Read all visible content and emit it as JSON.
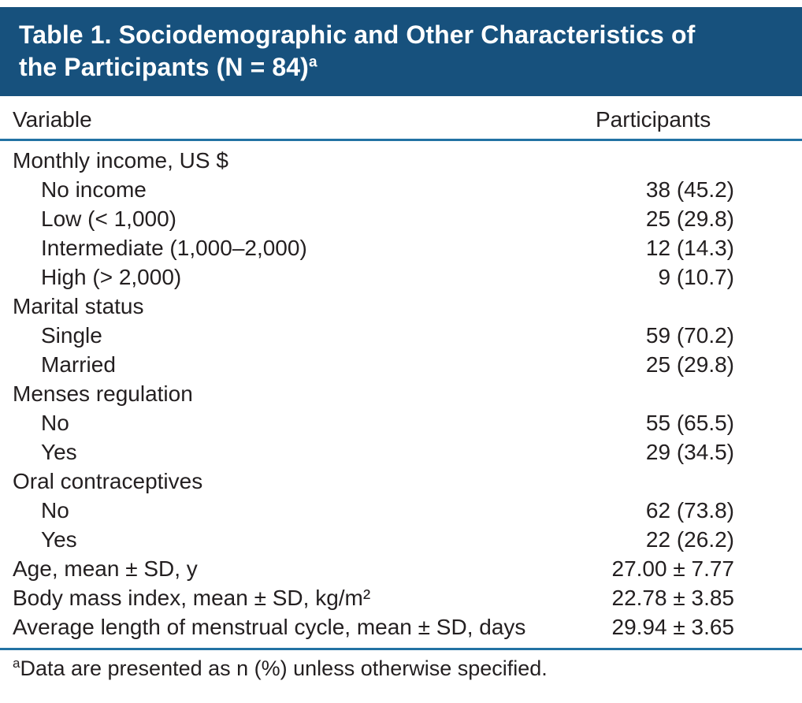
{
  "colors": {
    "band_bg": "#17517d",
    "rule": "#2272a3",
    "text": "#231f20"
  },
  "header": {
    "title": "Table 1. Sociodemographic and Other Characteristics of the Participants (N = 84)",
    "title_sup": "a"
  },
  "table": {
    "columns": [
      "Variable",
      "Participants"
    ],
    "rows": [
      {
        "label": "Monthly income, US $",
        "value": ""
      },
      {
        "label": "No income",
        "value": "38 (45.2)"
      },
      {
        "label": "Low (< 1,000)",
        "value": "25 (29.8)"
      },
      {
        "label": "Intermediate (1,000–2,000)",
        "value": "12 (14.3)"
      },
      {
        "label": "High (> 2,000)",
        "value": "9 (10.7)"
      },
      {
        "label": "Marital status",
        "value": ""
      },
      {
        "label": "Single",
        "value": "59 (70.2)"
      },
      {
        "label": "Married",
        "value": "25 (29.8)"
      },
      {
        "label": "Menses regulation",
        "value": ""
      },
      {
        "label": "No",
        "value": "55 (65.5)"
      },
      {
        "label": "Yes",
        "value": "29 (34.5)"
      },
      {
        "label": "Oral contraceptives",
        "value": ""
      },
      {
        "label": "No",
        "value": "62 (73.8)"
      },
      {
        "label": "Yes",
        "value": "22 (26.2)"
      },
      {
        "label": "Age, mean ± SD, y",
        "value": "27.00 ± 7.77"
      },
      {
        "label": "Body mass index, mean ± SD, kg/m²",
        "value": "22.78 ± 3.85"
      },
      {
        "label": "Average length of menstrual cycle, mean ± SD, days",
        "value": "29.94 ± 3.65"
      }
    ]
  },
  "footnote": {
    "sup": "a",
    "text": "Data are presented as n (%) unless otherwise specified."
  }
}
